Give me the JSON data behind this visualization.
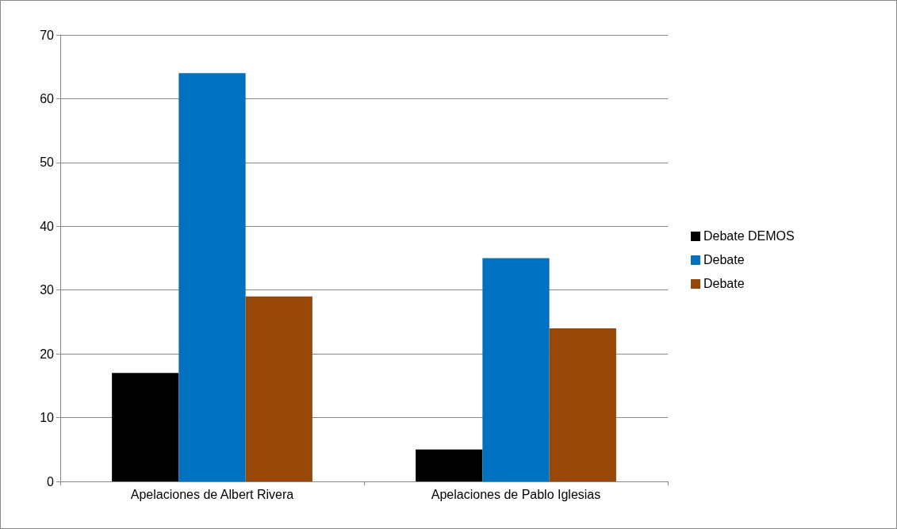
{
  "chart_data": {
    "type": "bar",
    "categories": [
      "Apelaciones de Albert Rivera",
      "Apelaciones de Pablo Iglesias"
    ],
    "series": [
      {
        "name": "Debate DEMOS",
        "color": "#000000",
        "values": [
          17,
          5
        ]
      },
      {
        "name": "Debate",
        "color": "#0070c0",
        "values": [
          64,
          35
        ]
      },
      {
        "name": "Debate",
        "color": "#974706",
        "values": [
          29,
          24
        ]
      }
    ],
    "ylim": [
      0,
      70
    ],
    "yticks": [
      0,
      10,
      20,
      30,
      40,
      50,
      60,
      70
    ],
    "grid": "y",
    "legend": "right"
  }
}
